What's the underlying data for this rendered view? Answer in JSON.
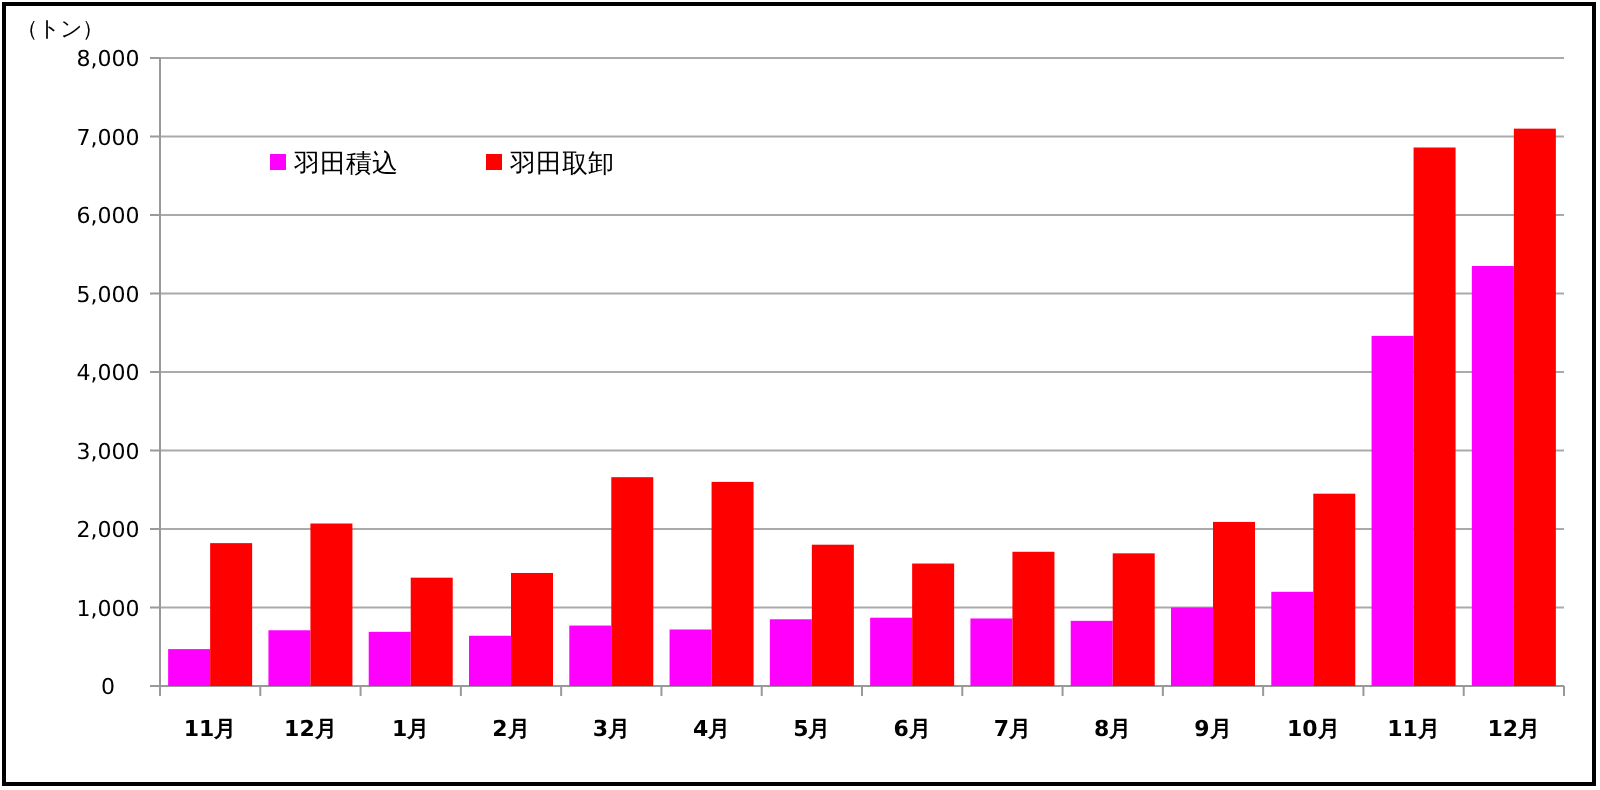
{
  "chart_data": {
    "type": "bar",
    "ylabel": "（トン）",
    "categories": [
      "11月",
      "12月",
      "1月",
      "2月",
      "3月",
      "4月",
      "5月",
      "6月",
      "7月",
      "8月",
      "9月",
      "10月",
      "11月",
      "12月"
    ],
    "series": [
      {
        "name": "羽田積込",
        "color": "#ff00ff",
        "values": [
          470,
          710,
          690,
          640,
          770,
          720,
          850,
          870,
          860,
          830,
          1000,
          1200,
          4460,
          5350
        ]
      },
      {
        "name": "羽田取卸",
        "color": "#ff0000",
        "values": [
          1820,
          2070,
          1380,
          1440,
          2660,
          2600,
          1800,
          1560,
          1710,
          1690,
          2090,
          2450,
          6860,
          7100
        ]
      }
    ],
    "ylim": [
      0,
      8000
    ],
    "yticks": [
      0,
      {
        "value": 1000,
        "label": "1,000"
      },
      {
        "value": 2000,
        "label": "2,000"
      },
      {
        "value": 3000,
        "label": "3,000"
      },
      {
        "value": 4000,
        "label": "4,000"
      },
      {
        "value": 5000,
        "label": "5,000"
      },
      {
        "value": 6000,
        "label": "6,000"
      },
      {
        "value": 7000,
        "label": "7,000"
      },
      {
        "value": 8000,
        "label": "8,000"
      }
    ],
    "grid": "y",
    "legend": "top left"
  }
}
